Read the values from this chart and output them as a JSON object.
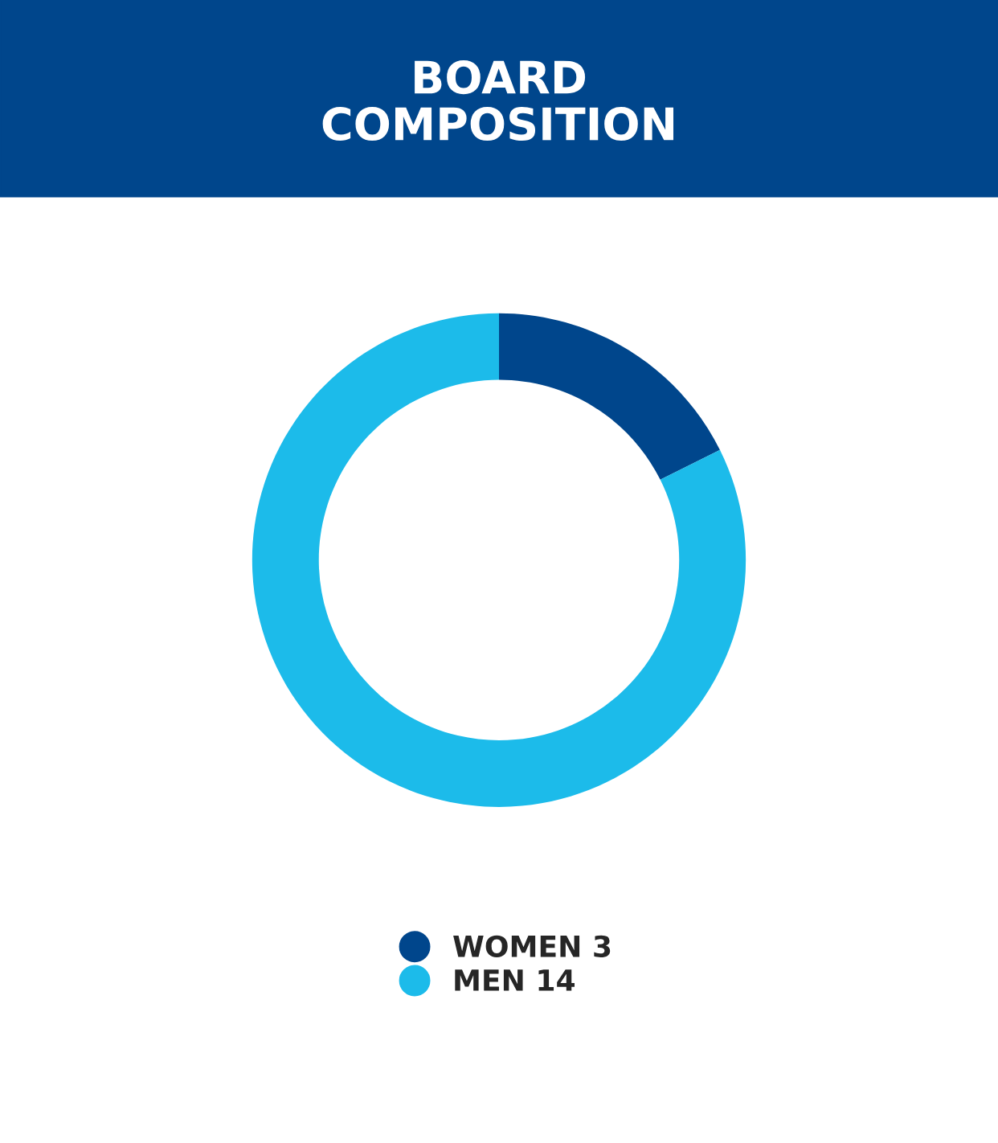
{
  "chart_data": {
    "type": "donut",
    "title": "BOARD\nCOMPOSITION",
    "categories": [
      "WOMEN 3",
      "MEN 14"
    ],
    "values": [
      3,
      14
    ],
    "colors": [
      "#00468c",
      "#1cbbea"
    ],
    "legend": "bottom"
  }
}
